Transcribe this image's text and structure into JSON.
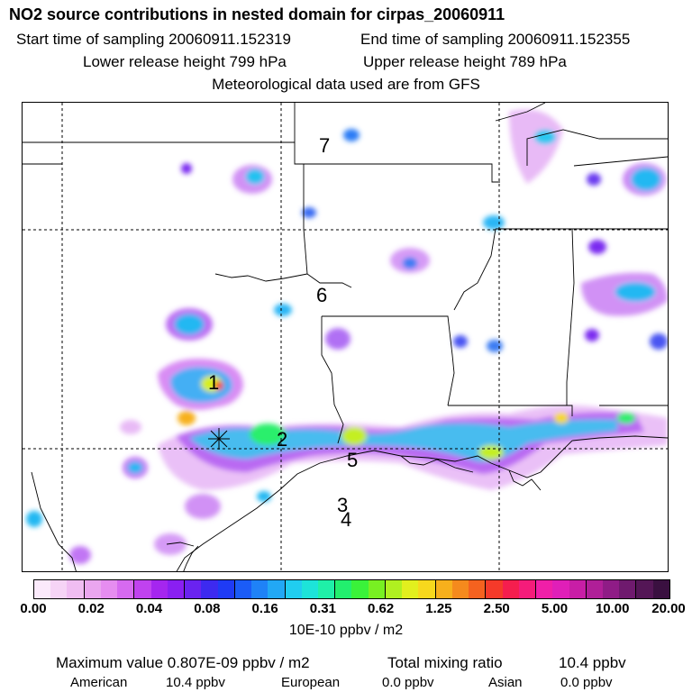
{
  "header": {
    "title": "NO2 source contributions in nested domain for cirpas_20060911",
    "start_label": "Start time of sampling 20060911.152319",
    "end_label": "End time of sampling 20060911.152355",
    "lower_label": "Lower release height  799 hPa",
    "upper_label": "Upper release height  789 hPa",
    "met_label": "Meteorological data used are from GFS"
  },
  "map": {
    "markers": [
      "1",
      "2",
      "3",
      "4",
      "5",
      "6",
      "7"
    ]
  },
  "colorbar": {
    "colors": [
      "#fbeafb",
      "#f6d4f6",
      "#f0bdf2",
      "#eaa6ef",
      "#e68df0",
      "#d66af0",
      "#c042ef",
      "#a526ef",
      "#8a1ff2",
      "#6a23f0",
      "#3d2af0",
      "#1f3bf5",
      "#1b5cf7",
      "#1f82f7",
      "#22a8f5",
      "#20cdf0",
      "#1de4d9",
      "#1ff0a8",
      "#22ef6e",
      "#3af23a",
      "#78f022",
      "#b0f020",
      "#e2ef1e",
      "#f7d81d",
      "#f7b01c",
      "#f58a1d",
      "#f5621f",
      "#f53a2a",
      "#f51e4e",
      "#f51c7a",
      "#f01fa8",
      "#e01fb8",
      "#c81ea6",
      "#b01f98",
      "#8f1c86",
      "#6f1a6e",
      "#541656",
      "#3a1040"
    ],
    "ticks": [
      "0.00",
      "0.02",
      "0.04",
      "0.08",
      "0.16",
      "0.31",
      "0.62",
      "1.25",
      "2.50",
      "5.00",
      "10.00",
      "20.00"
    ],
    "unit": "10E-10 ppbv / m2"
  },
  "footer": {
    "max_label": "Maximum value  0.807E-09 ppbv / m2",
    "total_label": "Total mixing ratio",
    "total_value": "10.4 ppbv",
    "american_label": "American",
    "american_value": "10.4 ppbv",
    "european_label": "European",
    "european_value": "0.0 ppbv",
    "asian_label": "Asian",
    "asian_value": "0.0 ppbv"
  }
}
